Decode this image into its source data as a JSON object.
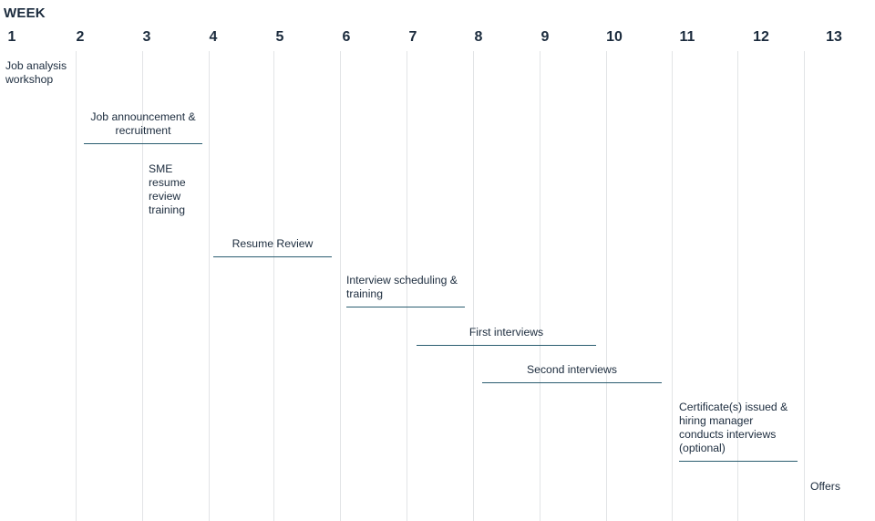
{
  "header": {
    "title": "WEEK"
  },
  "weeks": [
    "1",
    "2",
    "3",
    "4",
    "5",
    "6",
    "7",
    "8",
    "9",
    "10",
    "11",
    "12",
    "13"
  ],
  "tasks": {
    "job_analysis": "Job analysis workshop",
    "job_announcement": "Job announcement & recruitment",
    "sme_training": "SME resume review training",
    "resume_review": "Resume Review",
    "interview_scheduling": "Interview scheduling & training",
    "first_interviews": "First interviews",
    "second_interviews": "Second interviews",
    "certificates": "Certificate(s) issued & hiring manager conducts interviews (optional)",
    "offers": "Offers"
  },
  "colors": {
    "text": "#1b2b3d",
    "bar": "#2b5d70",
    "grid": "#e2e4e6"
  }
}
